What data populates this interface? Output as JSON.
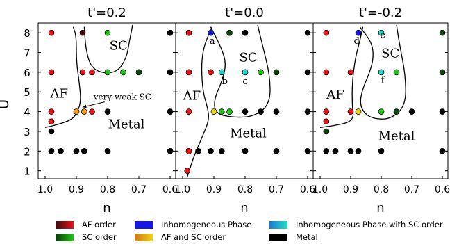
{
  "chart_data": {
    "type": "scatter",
    "ylabel": "U",
    "xlabel": "n",
    "xlim": [
      1.0,
      0.6
    ],
    "ylim": [
      0.6,
      8.5
    ],
    "x_ticks": [
      "1.0",
      "0.9",
      "0.8",
      "0.7",
      "0.6"
    ],
    "y_ticks": [
      "1",
      "2",
      "3",
      "4",
      "5",
      "6",
      "7",
      "8"
    ],
    "colors": {
      "af": "#e8141a",
      "af_dark": "#4a0d0d",
      "sc": "#22c418",
      "sc_dark": "#0c4a09",
      "af_sc": "#ff9a1a",
      "af_sc_yellow": "#f2d21a",
      "inhomogeneous": "#1418e0",
      "inhomogeneous_sc": "#20d8c8",
      "metal": "#000000"
    },
    "panels": [
      {
        "title": "t'=0.2",
        "labels": [
          {
            "text": "SC",
            "x": 0.765,
            "y": 7.15
          },
          {
            "text": "AF",
            "x": 0.955,
            "y": 4.7
          },
          {
            "text": "Metal",
            "x": 0.74,
            "y": 3.15
          }
        ],
        "annotation": {
          "text": "very weak SC",
          "x": 0.845,
          "y": 4.6,
          "target_x": 0.885,
          "target_y": 4.12
        },
        "boundaries": [
          [
            [
              1.0,
              3.2
            ],
            [
              0.97,
              3.3
            ],
            [
              0.92,
              3.55
            ],
            [
              0.9,
              3.85
            ],
            [
              0.885,
              4.5
            ],
            [
              0.89,
              5.4
            ],
            [
              0.9,
              6.5
            ],
            [
              0.9,
              7.8
            ],
            [
              0.91,
              8.3
            ]
          ],
          [
            [
              0.875,
              8.3
            ],
            [
              0.87,
              7.2
            ],
            [
              0.855,
              6.3
            ],
            [
              0.82,
              5.95
            ],
            [
              0.77,
              6.0
            ],
            [
              0.74,
              6.7
            ],
            [
              0.73,
              7.6
            ],
            [
              0.72,
              8.4
            ]
          ]
        ],
        "points": [
          {
            "x": 0.98,
            "y": 8,
            "kind": "af"
          },
          {
            "x": 0.88,
            "y": 8,
            "kind": "af_dark"
          },
          {
            "x": 0.8,
            "y": 8,
            "kind": "sc"
          },
          {
            "x": 0.6,
            "y": 8,
            "kind": "metal"
          },
          {
            "x": 0.98,
            "y": 6,
            "kind": "af"
          },
          {
            "x": 0.88,
            "y": 6,
            "kind": "af"
          },
          {
            "x": 0.85,
            "y": 6,
            "kind": "af"
          },
          {
            "x": 0.8,
            "y": 6,
            "kind": "sc"
          },
          {
            "x": 0.75,
            "y": 6,
            "kind": "sc"
          },
          {
            "x": 0.7,
            "y": 6,
            "kind": "sc_dark"
          },
          {
            "x": 0.6,
            "y": 6,
            "kind": "metal"
          },
          {
            "x": 0.98,
            "y": 4,
            "kind": "af"
          },
          {
            "x": 0.9,
            "y": 4,
            "kind": "af_sc"
          },
          {
            "x": 0.875,
            "y": 4,
            "kind": "af_sc"
          },
          {
            "x": 0.85,
            "y": 4,
            "kind": "af"
          },
          {
            "x": 0.8,
            "y": 4,
            "kind": "metal"
          },
          {
            "x": 0.6,
            "y": 4,
            "kind": "metal"
          },
          {
            "x": 0.98,
            "y": 3.5,
            "kind": "af"
          },
          {
            "x": 0.98,
            "y": 3,
            "kind": "metal"
          },
          {
            "x": 0.98,
            "y": 2,
            "kind": "metal"
          },
          {
            "x": 0.95,
            "y": 2,
            "kind": "metal"
          },
          {
            "x": 0.9,
            "y": 2,
            "kind": "metal"
          },
          {
            "x": 0.875,
            "y": 2,
            "kind": "metal"
          },
          {
            "x": 0.8,
            "y": 2,
            "kind": "metal"
          },
          {
            "x": 0.6,
            "y": 2,
            "kind": "metal"
          }
        ]
      },
      {
        "title": "t'=0.0",
        "labels": [
          {
            "text": "SC",
            "x": 0.79,
            "y": 6.55
          },
          {
            "text": "AF",
            "x": 0.97,
            "y": 4.6
          },
          {
            "text": "Metal",
            "x": 0.79,
            "y": 2.7
          },
          {
            "text": "a",
            "x": 0.905,
            "y": 7.45
          },
          {
            "text": "b",
            "x": 0.865,
            "y": 5.4
          },
          {
            "text": "c",
            "x": 0.8,
            "y": 5.4
          }
        ],
        "boundaries": [
          [
            [
              0.985,
              0.7
            ],
            [
              0.965,
              1.7
            ],
            [
              0.935,
              2.8
            ],
            [
              0.915,
              3.6
            ],
            [
              0.92,
              4.2
            ],
            [
              0.935,
              5.0
            ],
            [
              0.94,
              6.2
            ],
            [
              0.935,
              7.1
            ],
            [
              0.92,
              7.8
            ],
            [
              0.905,
              8.3
            ]
          ],
          [
            [
              0.91,
              8.3
            ],
            [
              0.875,
              7.2
            ],
            [
              0.86,
              6.4
            ],
            [
              0.875,
              5.5
            ],
            [
              0.9,
              4.6
            ],
            [
              0.895,
              3.9
            ],
            [
              0.84,
              3.7
            ],
            [
              0.77,
              3.75
            ],
            [
              0.72,
              4.4
            ],
            [
              0.72,
              5.8
            ],
            [
              0.745,
              7.4
            ],
            [
              0.76,
              8.4
            ]
          ]
        ],
        "points": [
          {
            "x": 0.98,
            "y": 8,
            "kind": "af"
          },
          {
            "x": 0.91,
            "y": 8,
            "kind": "inhomogeneous"
          },
          {
            "x": 0.85,
            "y": 8,
            "kind": "sc_dark"
          },
          {
            "x": 0.8,
            "y": 8,
            "kind": "metal"
          },
          {
            "x": 0.6,
            "y": 8,
            "kind": "metal"
          },
          {
            "x": 0.98,
            "y": 6,
            "kind": "af"
          },
          {
            "x": 0.91,
            "y": 6,
            "kind": "af"
          },
          {
            "x": 0.875,
            "y": 6,
            "kind": "inhomogeneous_sc"
          },
          {
            "x": 0.8,
            "y": 6,
            "kind": "inhomogeneous_sc"
          },
          {
            "x": 0.75,
            "y": 6,
            "kind": "sc"
          },
          {
            "x": 0.7,
            "y": 6,
            "kind": "sc_dark"
          },
          {
            "x": 0.6,
            "y": 6,
            "kind": "metal"
          },
          {
            "x": 0.98,
            "y": 4,
            "kind": "af"
          },
          {
            "x": 0.9,
            "y": 4,
            "kind": "af_sc_yellow"
          },
          {
            "x": 0.875,
            "y": 4,
            "kind": "sc"
          },
          {
            "x": 0.85,
            "y": 4,
            "kind": "sc"
          },
          {
            "x": 0.8,
            "y": 4,
            "kind": "metal"
          },
          {
            "x": 0.75,
            "y": 4,
            "kind": "metal"
          },
          {
            "x": 0.7,
            "y": 4,
            "kind": "metal"
          },
          {
            "x": 0.6,
            "y": 4,
            "kind": "metal"
          },
          {
            "x": 0.98,
            "y": 2,
            "kind": "af"
          },
          {
            "x": 0.95,
            "y": 2,
            "kind": "metal"
          },
          {
            "x": 0.91,
            "y": 2,
            "kind": "metal"
          },
          {
            "x": 0.875,
            "y": 2,
            "kind": "metal"
          },
          {
            "x": 0.8,
            "y": 2,
            "kind": "metal"
          },
          {
            "x": 0.7,
            "y": 2,
            "kind": "metal"
          },
          {
            "x": 0.6,
            "y": 2,
            "kind": "metal"
          },
          {
            "x": 0.985,
            "y": 1,
            "kind": "af"
          }
        ]
      },
      {
        "title": "t'=-0.2",
        "labels": [
          {
            "text": "SC",
            "x": 0.77,
            "y": 6.75
          },
          {
            "text": "AF",
            "x": 0.95,
            "y": 4.65
          },
          {
            "text": "Metal",
            "x": 0.75,
            "y": 2.55
          },
          {
            "text": "d",
            "x": 0.88,
            "y": 7.45
          },
          {
            "text": "e",
            "x": 0.795,
            "y": 7.75
          },
          {
            "text": "f",
            "x": 0.795,
            "y": 5.45
          }
        ],
        "boundaries": [
          [
            [
              1.0,
              3.2
            ],
            [
              0.96,
              3.28
            ],
            [
              0.905,
              3.45
            ],
            [
              0.89,
              3.75
            ],
            [
              0.895,
              4.3
            ],
            [
              0.895,
              5.5
            ],
            [
              0.885,
              6.7
            ],
            [
              0.87,
              7.6
            ],
            [
              0.86,
              8.3
            ]
          ],
          [
            [
              0.87,
              8.3
            ],
            [
              0.83,
              7.5
            ],
            [
              0.825,
              6.7
            ],
            [
              0.84,
              5.9
            ],
            [
              0.86,
              5.2
            ],
            [
              0.87,
              4.5
            ],
            [
              0.86,
              4.0
            ],
            [
              0.83,
              3.65
            ],
            [
              0.77,
              3.6
            ],
            [
              0.72,
              4.3
            ],
            [
              0.72,
              5.8
            ],
            [
              0.74,
              7.4
            ],
            [
              0.75,
              8.4
            ]
          ]
        ],
        "points": [
          {
            "x": 0.98,
            "y": 8,
            "kind": "af"
          },
          {
            "x": 0.875,
            "y": 8,
            "kind": "inhomogeneous"
          },
          {
            "x": 0.8,
            "y": 8,
            "kind": "inhomogeneous_sc"
          },
          {
            "x": 0.6,
            "y": 8,
            "kind": "sc_dark"
          },
          {
            "x": 0.98,
            "y": 6,
            "kind": "af"
          },
          {
            "x": 0.9,
            "y": 6,
            "kind": "af"
          },
          {
            "x": 0.8,
            "y": 6,
            "kind": "inhomogeneous_sc"
          },
          {
            "x": 0.75,
            "y": 6,
            "kind": "sc"
          },
          {
            "x": 0.6,
            "y": 6,
            "kind": "sc_dark"
          },
          {
            "x": 0.98,
            "y": 4,
            "kind": "af"
          },
          {
            "x": 0.9,
            "y": 4,
            "kind": "af"
          },
          {
            "x": 0.875,
            "y": 4,
            "kind": "af_sc_yellow"
          },
          {
            "x": 0.8,
            "y": 4,
            "kind": "sc"
          },
          {
            "x": 0.75,
            "y": 4,
            "kind": "sc_dark"
          },
          {
            "x": 0.7,
            "y": 4,
            "kind": "metal"
          },
          {
            "x": 0.6,
            "y": 4,
            "kind": "metal"
          },
          {
            "x": 0.98,
            "y": 3.5,
            "kind": "af"
          },
          {
            "x": 0.98,
            "y": 3,
            "kind": "sc_dark"
          },
          {
            "x": 0.98,
            "y": 2,
            "kind": "metal"
          },
          {
            "x": 0.95,
            "y": 2,
            "kind": "metal"
          },
          {
            "x": 0.9,
            "y": 2,
            "kind": "metal"
          },
          {
            "x": 0.875,
            "y": 2,
            "kind": "metal"
          },
          {
            "x": 0.8,
            "y": 2,
            "kind": "metal"
          },
          {
            "x": 0.6,
            "y": 2,
            "kind": "metal"
          }
        ]
      }
    ]
  },
  "legend": {
    "items": [
      {
        "label": "AF order",
        "gradient": [
          "#3a0a0a",
          "#e8141a"
        ]
      },
      {
        "label": "SC order",
        "gradient": [
          "#0c3a09",
          "#22c418"
        ]
      },
      {
        "label": "Inhomogeneous Phase",
        "gradient": [
          "#1418e0",
          "#1418e0"
        ]
      },
      {
        "label": "AF and SC order",
        "gradient": [
          "#c87818",
          "#f2d21a"
        ]
      },
      {
        "label": "Inhomogeneous Phase with SC order",
        "gradient": [
          "#1a7ad8",
          "#20e0c0"
        ]
      },
      {
        "label": "Metal",
        "gradient": [
          "#000000",
          "#000000"
        ]
      }
    ]
  }
}
